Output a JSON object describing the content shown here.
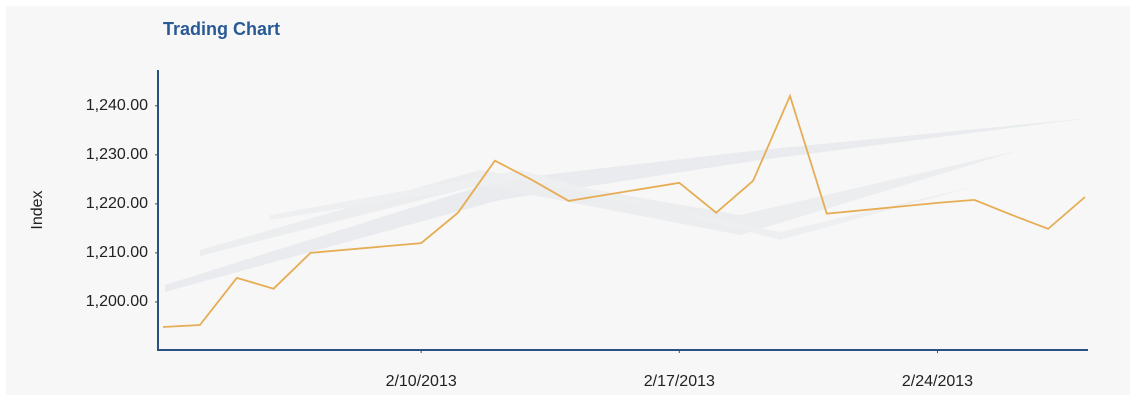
{
  "chart_data": {
    "type": "line",
    "title": "Trading Chart",
    "y_label": "Index",
    "x": [
      "2013-02-03",
      "2013-02-04",
      "2013-02-05",
      "2013-02-06",
      "2013-02-07",
      "2013-02-10",
      "2013-02-11",
      "2013-02-12",
      "2013-02-13",
      "2013-02-14",
      "2013-02-17",
      "2013-02-18",
      "2013-02-19",
      "2013-02-20",
      "2013-02-21",
      "2013-02-24",
      "2013-02-25",
      "2013-02-26",
      "2013-02-27",
      "2013-02-28"
    ],
    "series": [
      {
        "color": "#e6ad55",
        "values": [
          1194.9,
          1195.3,
          1204.9,
          1202.7,
          1210.0,
          1212.0,
          1218.2,
          1228.8,
          1224.9,
          1220.6,
          1224.3,
          1218.2,
          1224.7,
          1242.0,
          1218.0,
          1220.2,
          1220.8,
          1217.8,
          1214.9,
          1221.4
        ]
      }
    ],
    "xlim": [
      "2013-02-03",
      "2013-02-28"
    ],
    "xticks": [
      {
        "value": "2013-02-10",
        "label": "2/10/2013"
      },
      {
        "value": "2013-02-17",
        "label": "2/17/2013"
      },
      {
        "value": "2013-02-24",
        "label": "2/24/2013"
      }
    ],
    "ylim": [
      1190.2,
      1247.3
    ],
    "yticks": [
      {
        "value": 1200,
        "label": "1,200.00"
      },
      {
        "value": 1210,
        "label": "1,210.00"
      },
      {
        "value": 1220,
        "label": "1,220.00"
      },
      {
        "value": 1230,
        "label": "1,230.00"
      },
      {
        "value": 1240,
        "label": "1,240.00"
      }
    ],
    "grid": false
  }
}
